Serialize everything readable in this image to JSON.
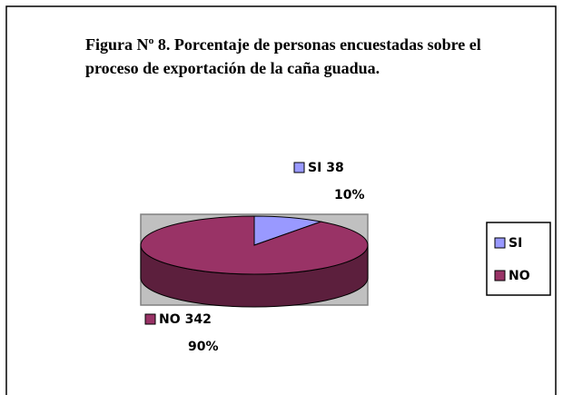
{
  "chart_data": {
    "type": "pie",
    "title": "Figura Nº 8. Porcentaje de personas encuestadas sobre el proceso de exportación de la caña guadua.",
    "categories": [
      "SI",
      "NO"
    ],
    "values": [
      38,
      342
    ],
    "percentages": [
      10,
      90
    ],
    "percentage_labels": [
      "10%",
      "90%"
    ],
    "colors": [
      "#9999ff",
      "#993366"
    ],
    "legend": "right"
  }
}
